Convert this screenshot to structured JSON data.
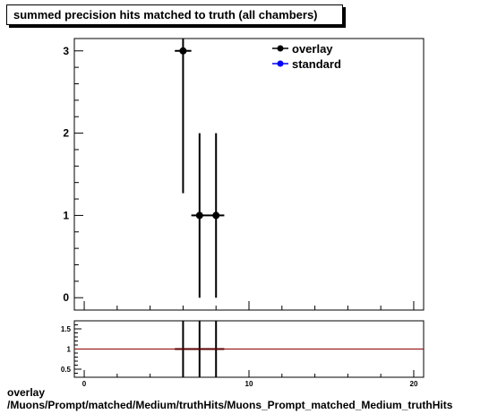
{
  "chart_data": {
    "title": "summed precision hits matched to truth (all chambers)",
    "main": {
      "type": "scatter",
      "xlim": [
        -0.6,
        20.6
      ],
      "ylim": [
        -0.15,
        3.15
      ],
      "y_ticks": [
        "0",
        "1",
        "2",
        "3"
      ],
      "legend": {
        "placement": "top-right"
      },
      "series": [
        {
          "name": "overlay",
          "color": "#000000",
          "points": [
            {
              "x": 6,
              "y": 3,
              "xerr": 0.5,
              "ylow": 1.27,
              "yhigh": 3.15
            },
            {
              "x": 7,
              "y": 1,
              "xerr": 0.5,
              "ylow": 0.0,
              "yhigh": 2.0
            },
            {
              "x": 8,
              "y": 1,
              "xerr": 0.5,
              "ylow": 0.0,
              "yhigh": 2.0
            }
          ]
        },
        {
          "name": "standard",
          "color": "#0000ff",
          "points": []
        }
      ]
    },
    "ratio": {
      "type": "line",
      "xlim": [
        -0.6,
        20.6
      ],
      "ylim": [
        0.3,
        1.7
      ],
      "y_ticks": [
        "0.5",
        "1",
        "1.5"
      ],
      "x_ticks": [
        "0",
        "10",
        "20"
      ],
      "reference_line": {
        "y": 1,
        "color": "#8b0000"
      },
      "bands": [
        {
          "x0": 5.5,
          "x1": 8.5,
          "y": 1.0
        }
      ],
      "vertical_bars": [
        6,
        7,
        8
      ]
    }
  },
  "footer": {
    "line1": "overlay",
    "line2": "/Muons/Prompt/matched/Medium/truthHits/Muons_Prompt_matched_Medium_truthHits"
  }
}
